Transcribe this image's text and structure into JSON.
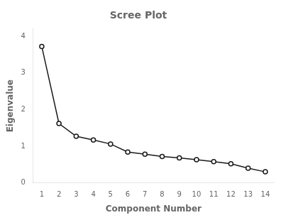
{
  "chart_data": {
    "type": "line",
    "title": "Scree Plot",
    "x_label": "Component Number",
    "y_label": "Eigenvalue",
    "x": [
      1,
      2,
      3,
      4,
      5,
      6,
      7,
      8,
      9,
      10,
      11,
      12,
      13,
      14
    ],
    "values": [
      3.72,
      1.62,
      1.27,
      1.17,
      1.06,
      0.84,
      0.78,
      0.72,
      0.68,
      0.63,
      0.58,
      0.52,
      0.4,
      0.3
    ],
    "color": "#1a1a1a",
    "marker": "circle",
    "xlim": [
      0.5,
      14.5
    ],
    "xticks": [
      1,
      2,
      3,
      4,
      5,
      6,
      7,
      8,
      9,
      10,
      11,
      12,
      13,
      14
    ],
    "ylim": [
      0,
      4.2
    ],
    "yticks": [
      0,
      1,
      2,
      3,
      4
    ],
    "grid": false
  }
}
